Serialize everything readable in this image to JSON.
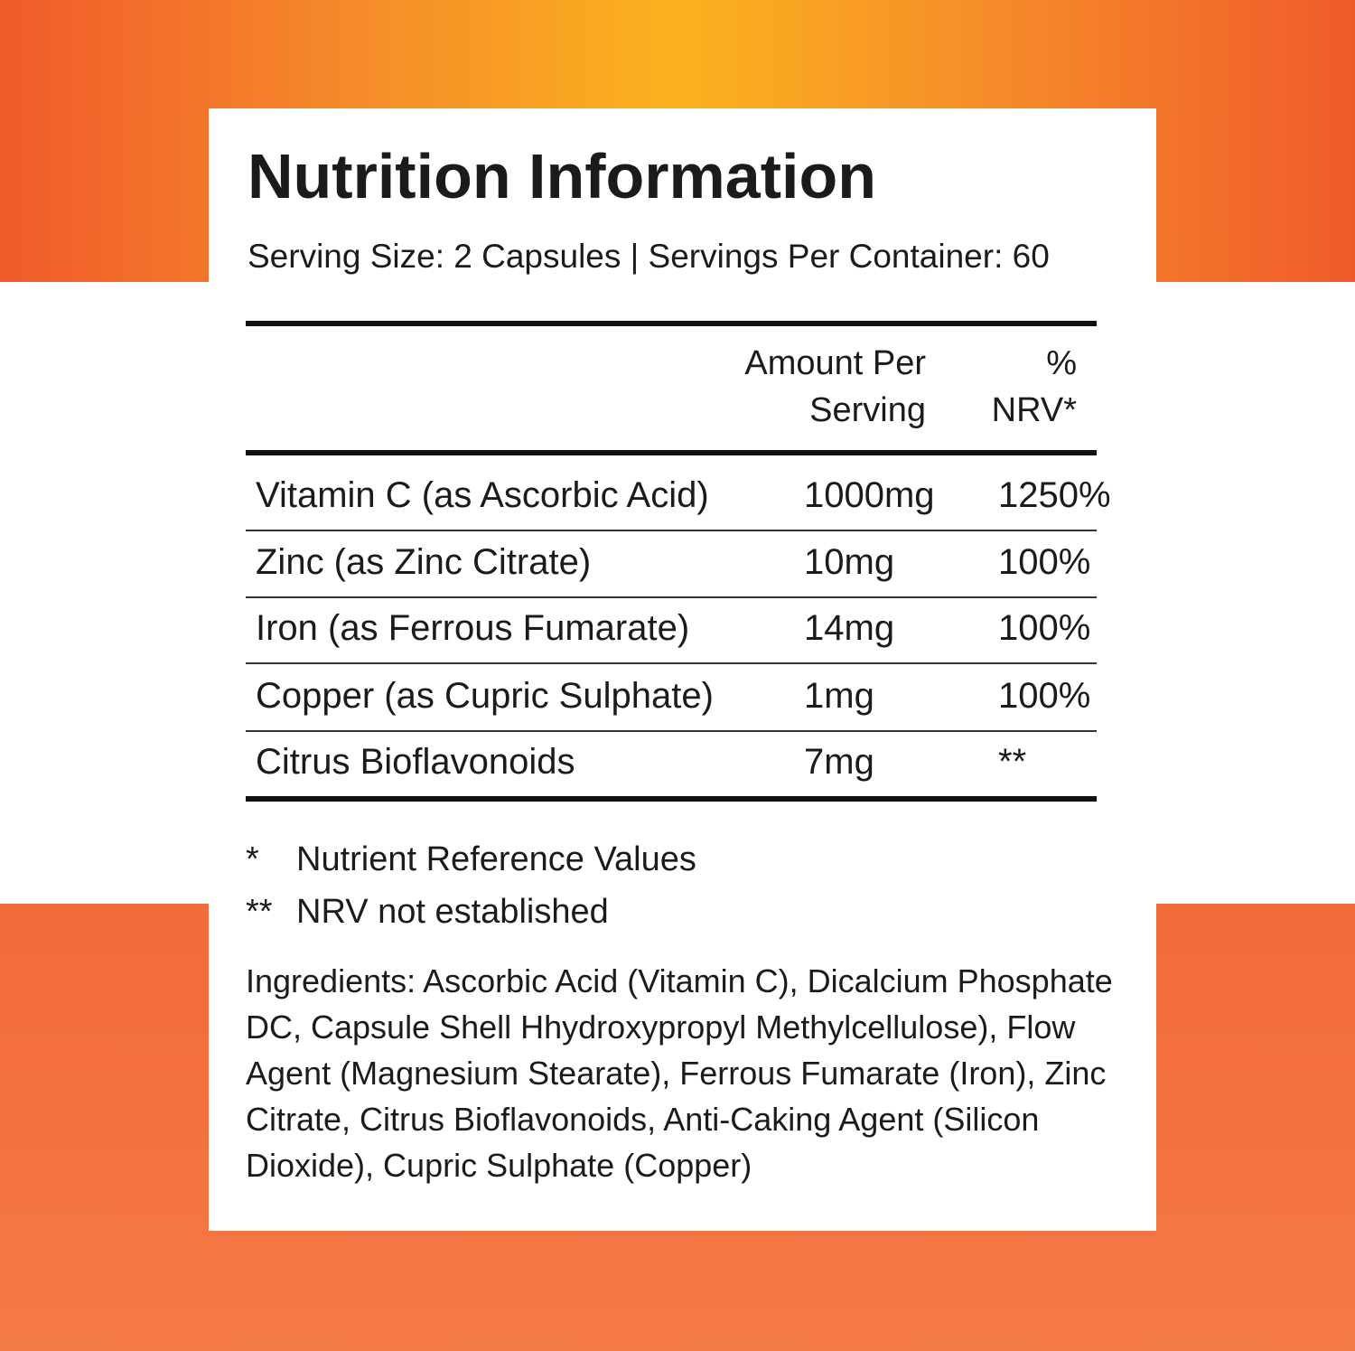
{
  "header": {
    "title": "Nutrition Information",
    "serving": "Serving Size: 2 Capsules | Servings Per Container: 60"
  },
  "table": {
    "columns": [
      [
        "Amount Per",
        "Serving"
      ],
      [
        "%",
        "NRV*"
      ]
    ],
    "rows": [
      [
        "Vitamin C (as Ascorbic Acid)",
        "1000mg",
        "1250%"
      ],
      [
        "Zinc (as Zinc Citrate)",
        "10mg",
        "100%"
      ],
      [
        "Iron (as Ferrous Fumarate)",
        "14mg",
        "100%"
      ],
      [
        "Copper (as Cupric Sulphate)",
        "1mg",
        "100%"
      ],
      [
        "Citrus Bioflavonoids",
        "7mg",
        "**"
      ]
    ]
  },
  "footnotes": [
    [
      "*",
      "Nutrient Reference Values"
    ],
    [
      "**",
      "NRV not established"
    ]
  ],
  "ingredients": "Ingredients: Ascorbic Acid (Vitamin C), Dicalcium Phosphate DC, Capsule Shell Hhydroxypropyl Methylcellulose), Flow Agent (Magnesium Stearate), Ferrous Fumarate (Iron), Zinc Citrate, Citrus Bioflavonoids, Anti-Caking Agent (Silicon Dioxide), Cupric Sulphate (Copper)"
}
